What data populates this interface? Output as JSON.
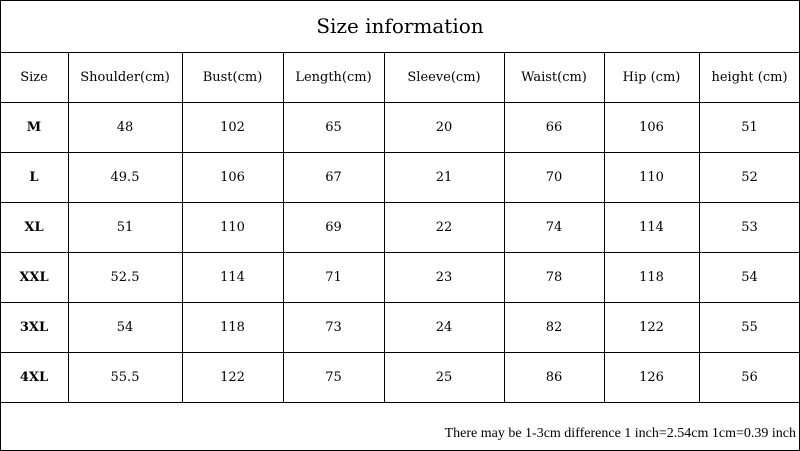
{
  "header": {
    "title": "Size information"
  },
  "table": {
    "columns": [
      "Size",
      "Shoulder(cm)",
      "Bust(cm)",
      "Length(cm)",
      "Sleeve(cm)",
      "Waist(cm)",
      "Hip (cm)",
      "height (cm)"
    ],
    "rows": [
      [
        "M",
        48,
        102,
        65,
        20,
        66,
        106,
        51
      ],
      [
        "L",
        49.5,
        106,
        67,
        21,
        70,
        110,
        52
      ],
      [
        "XL",
        51,
        110,
        69,
        22,
        74,
        114,
        53
      ],
      [
        "XXL",
        52.5,
        114,
        71,
        23,
        78,
        118,
        54
      ],
      [
        "3XL",
        54,
        118,
        73,
        24,
        82,
        122,
        55
      ],
      [
        "4XL",
        55.5,
        122,
        75,
        25,
        86,
        126,
        56
      ]
    ]
  },
  "footer": {
    "note": "There may be 1-3cm difference 1 inch=2.54cm 1cm=0.39 inch"
  }
}
